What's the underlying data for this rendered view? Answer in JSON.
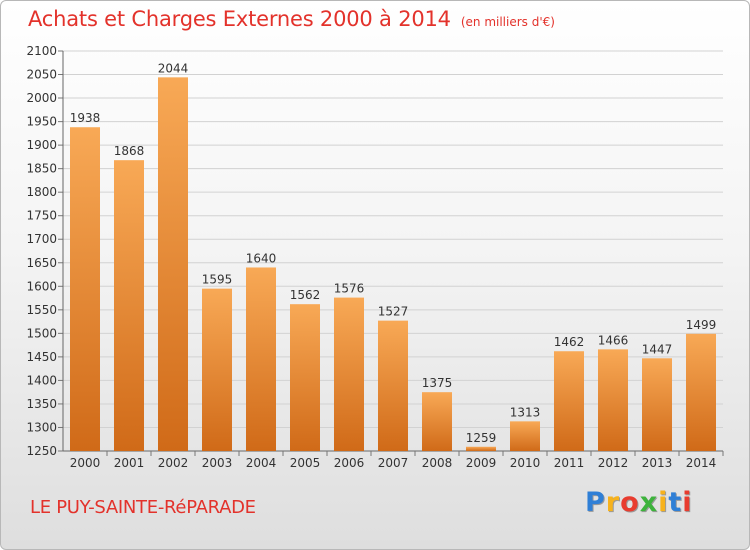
{
  "header": {
    "title": "Achats et Charges Externes 2000 à 2014",
    "unit": "(en milliers d'€)"
  },
  "footer": {
    "commune": "LE PUY-SAINTE-RéPARADE",
    "brand_letters": [
      "P",
      "r",
      "o",
      "x",
      "i",
      "t",
      "i"
    ],
    "brand_colors": [
      "#2f7fd6",
      "#f7b21c",
      "#e83c2f",
      "#3db33c",
      "#f7b21c",
      "#2f7fd6",
      "#e83c2f"
    ]
  },
  "colors": {
    "bar_light": "#f8a956",
    "bar_dark": "#d06a18",
    "title": "#e3322b",
    "grid": "#d2d2d2"
  },
  "chart_data": {
    "type": "bar",
    "categories": [
      "2000",
      "2001",
      "2002",
      "2003",
      "2004",
      "2005",
      "2006",
      "2007",
      "2008",
      "2009",
      "2010",
      "2011",
      "2012",
      "2013",
      "2014"
    ],
    "values": [
      1938,
      1868,
      2044,
      1595,
      1640,
      1562,
      1576,
      1527,
      1375,
      1259,
      1313,
      1462,
      1466,
      1447,
      1499
    ],
    "ylim": [
      1250,
      2100
    ],
    "yticks": [
      1250,
      1300,
      1350,
      1400,
      1450,
      1500,
      1550,
      1600,
      1650,
      1700,
      1750,
      1800,
      1850,
      1900,
      1950,
      2000,
      2050,
      2100
    ],
    "data_labels": true,
    "grid": true
  }
}
